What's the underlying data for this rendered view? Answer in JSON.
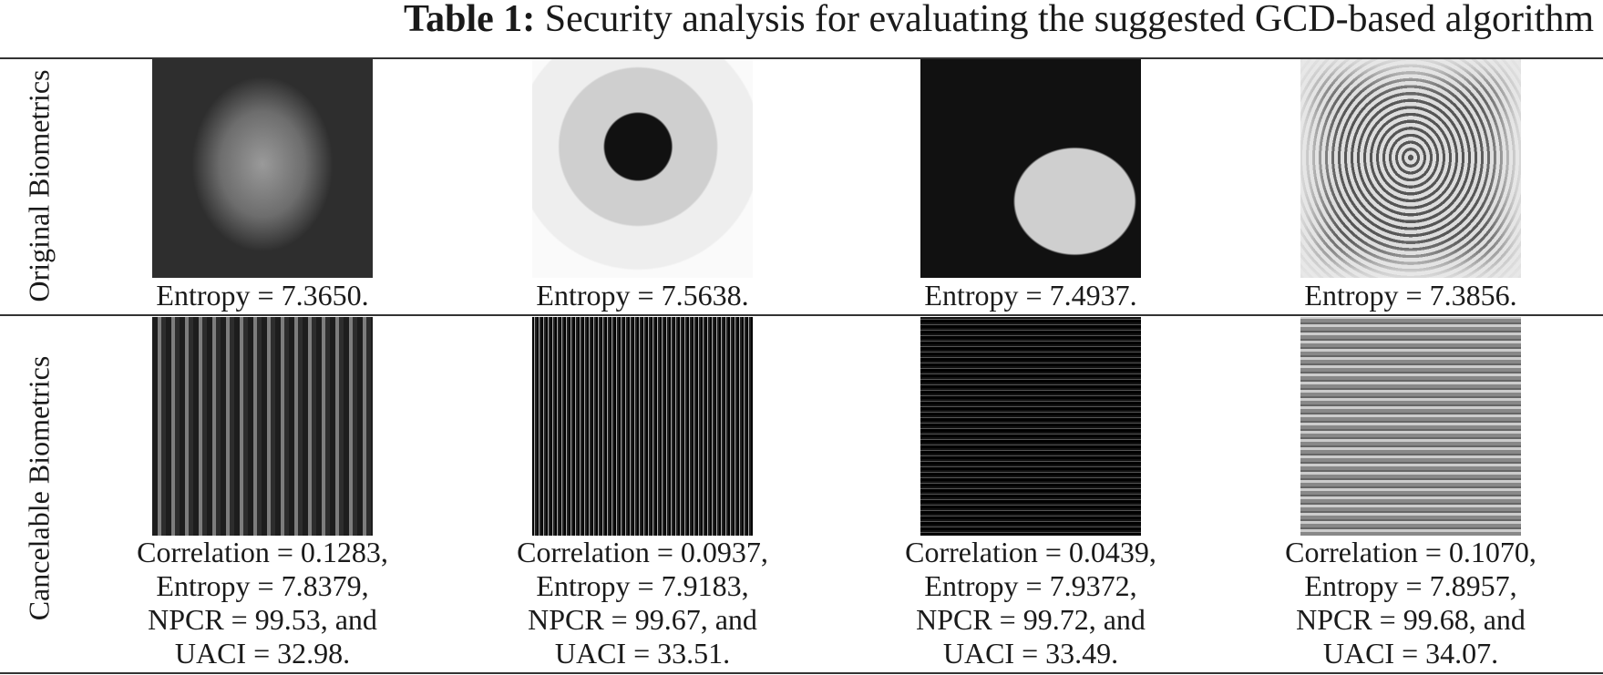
{
  "caption": {
    "label": "Table 1:",
    "text": "Security analysis for evaluating the suggested GCD-based algorithm"
  },
  "table": {
    "rows": [
      {
        "header": "Original Biometrics",
        "cells": [
          [
            "Entropy = 7.3650."
          ],
          [
            "Entropy = 7.5638."
          ],
          [
            "Entropy = 7.4937."
          ],
          [
            "Entropy = 7.3856."
          ]
        ]
      },
      {
        "header": "Cancelable Biometrics",
        "cells": [
          [
            "Correlation = 0.1283,",
            "Entropy = 7.8379,",
            "NPCR = 99.53, and",
            "UACI = 32.98."
          ],
          [
            "Correlation = 0.0937,",
            "Entropy = 7.9183,",
            "NPCR = 99.67, and",
            "UACI = 33.51."
          ],
          [
            "Correlation = 0.0439,",
            "Entropy = 7.9372,",
            "NPCR = 99.72, and",
            "UACI = 33.49."
          ],
          [
            "Correlation = 0.1070,",
            "Entropy = 7.8957,",
            "NPCR = 99.68, and",
            "UACI = 34.07."
          ]
        ]
      }
    ]
  }
}
